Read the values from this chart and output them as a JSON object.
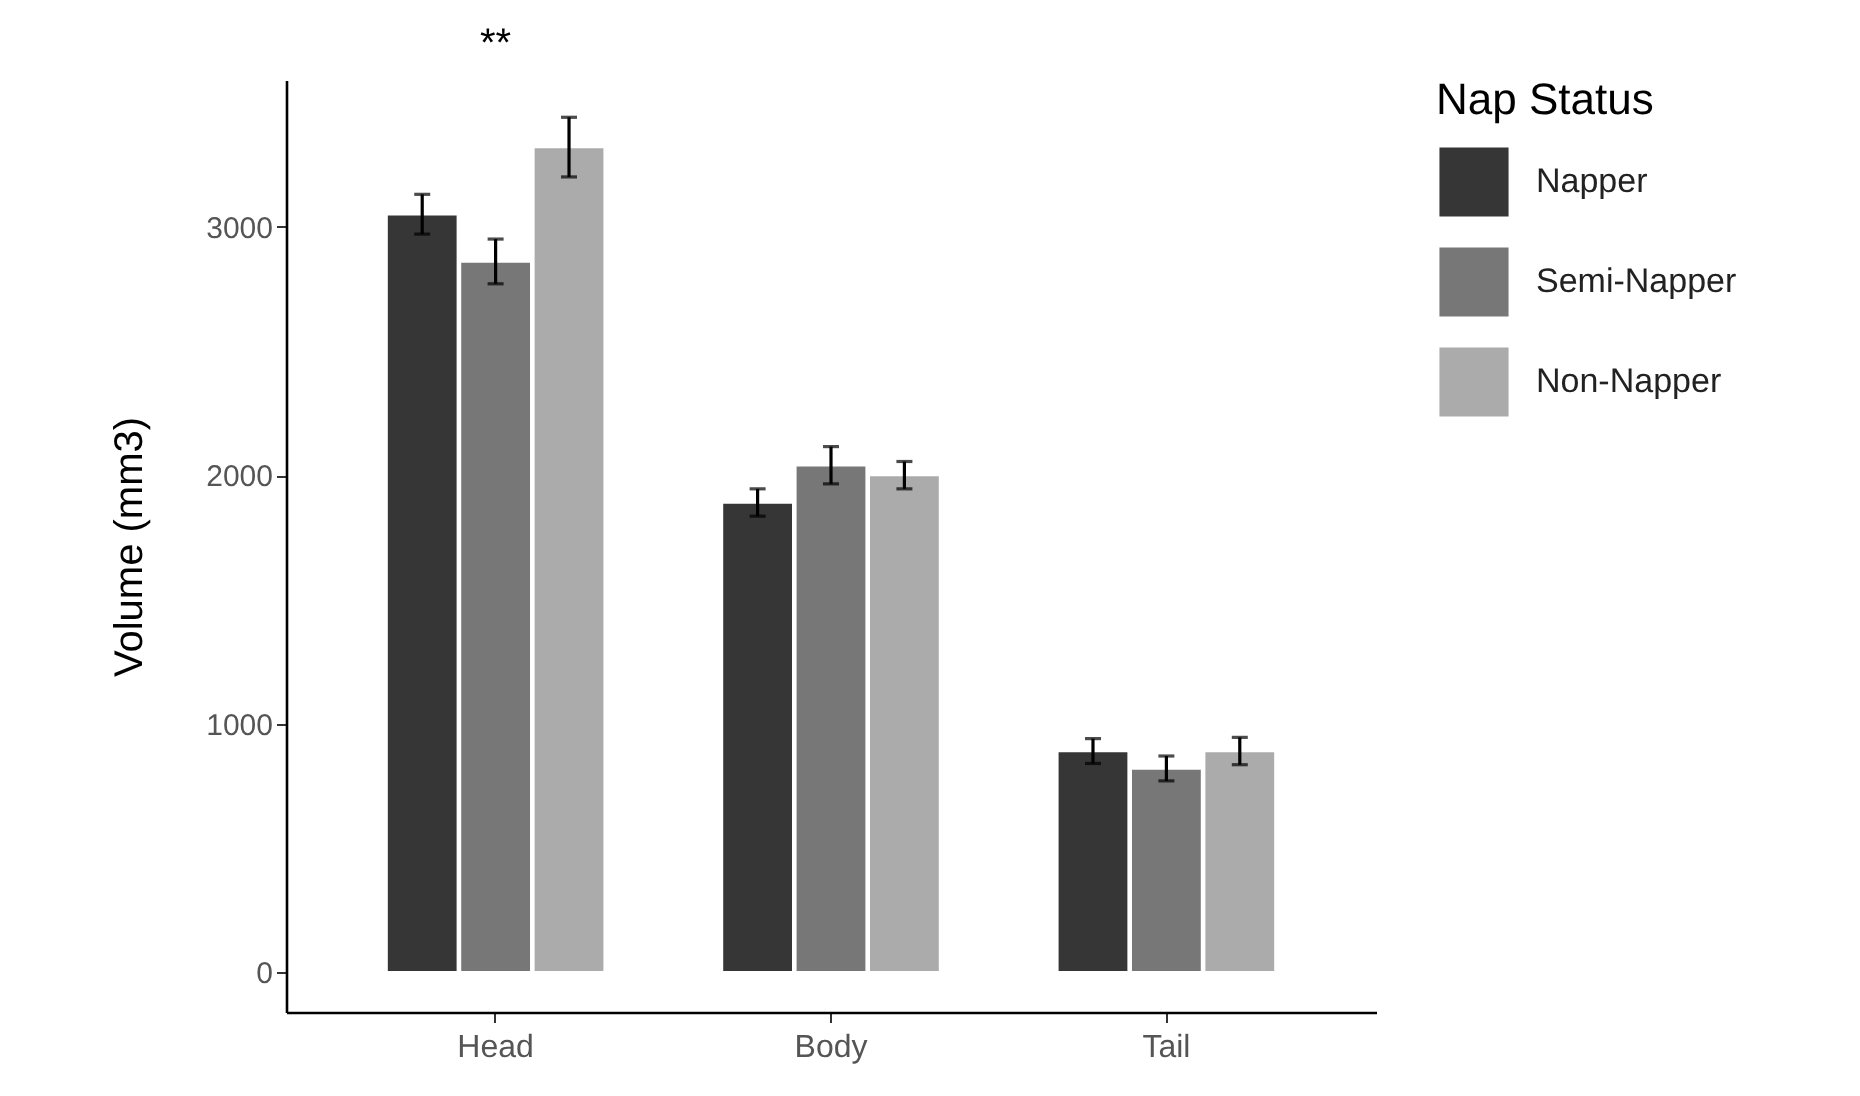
{
  "chart_data": {
    "type": "bar",
    "ylabel": "Volume (mm3)",
    "legend_title": "Nap Status",
    "categories": [
      "Head",
      "Body",
      "Tail"
    ],
    "series": [
      {
        "name": "Napper",
        "color": "#363636",
        "values": [
          3050,
          1890,
          890
        ],
        "errors": [
          80,
          55,
          50
        ]
      },
      {
        "name": "Semi-Napper",
        "color": "#777777",
        "values": [
          2860,
          2040,
          820
        ],
        "errors": [
          90,
          75,
          50
        ]
      },
      {
        "name": "Non-Napper",
        "color": "#ababab",
        "values": [
          3320,
          2000,
          890
        ],
        "errors": [
          120,
          55,
          55
        ]
      }
    ],
    "ylim": [
      -160,
      3590
    ],
    "yticks": [
      0,
      1000,
      2000,
      3000
    ],
    "grid": false,
    "legend": "right",
    "annotations": [
      "**"
    ]
  }
}
